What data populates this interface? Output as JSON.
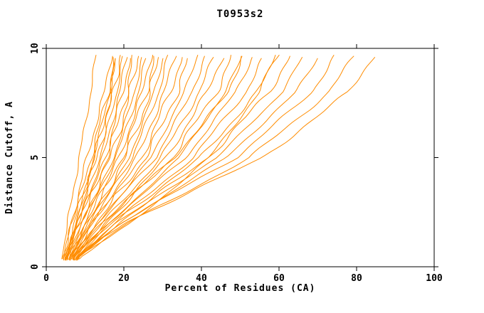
{
  "title": "T0953s2",
  "axes": {
    "x_label": "Percent of Residues (CA)",
    "y_label": "Distance Cutoff, A"
  },
  "colors": {
    "curve": "#FF8C00",
    "axis": "#000000",
    "background": "#FFFFFF"
  },
  "chart_data": {
    "type": "line",
    "title": "T0953s2",
    "xlabel": "Percent of Residues (CA)",
    "ylabel": "Distance Cutoff, A",
    "xlim": [
      0,
      100
    ],
    "ylim": [
      0,
      10
    ],
    "xticks": [
      0,
      20,
      40,
      60,
      80,
      100
    ],
    "yticks": [
      0,
      5,
      10
    ],
    "grid": false,
    "legend": "none",
    "y_samples": [
      0.4,
      2,
      5,
      8,
      9.7
    ],
    "series_note": "each series lists Percent-of-Residues (CA) values at the distance cutoffs given in y_samples",
    "series": [
      [
        4.0,
        5.5,
        8.5,
        11.5,
        12.8
      ],
      [
        4.5,
        6.5,
        10.5,
        15.0,
        16.8
      ],
      [
        5.0,
        7.0,
        11.5,
        16.0,
        17.6
      ],
      [
        4.2,
        6.8,
        12.5,
        16.8,
        18.2
      ],
      [
        5.5,
        8.0,
        13.0,
        17.5,
        18.9
      ],
      [
        4.8,
        7.5,
        13.8,
        18.2,
        19.8
      ],
      [
        5.0,
        8.2,
        14.6,
        19.0,
        20.7
      ],
      [
        6.0,
        9.0,
        15.2,
        19.8,
        21.6
      ],
      [
        4.5,
        8.0,
        15.8,
        20.8,
        22.6
      ],
      [
        5.2,
        9.0,
        16.6,
        21.8,
        23.7
      ],
      [
        6.0,
        9.8,
        17.4,
        22.8,
        24.8
      ],
      [
        5.0,
        9.2,
        18.0,
        23.8,
        25.9
      ],
      [
        6.5,
        10.8,
        18.8,
        24.8,
        27.0
      ],
      [
        5.5,
        10.0,
        19.6,
        25.8,
        28.1
      ],
      [
        6.0,
        10.8,
        20.5,
        26.8,
        29.2
      ],
      [
        6.8,
        11.8,
        21.4,
        27.8,
        30.3
      ],
      [
        5.8,
        11.0,
        22.2,
        29.0,
        31.5
      ],
      [
        6.2,
        11.8,
        23.4,
        30.5,
        33.2
      ],
      [
        7.0,
        12.8,
        24.6,
        32.0,
        35.0
      ],
      [
        6.0,
        12.0,
        25.8,
        33.8,
        37.0
      ],
      [
        7.2,
        13.5,
        27.0,
        35.6,
        39.0
      ],
      [
        6.5,
        13.0,
        28.2,
        37.5,
        41.2
      ],
      [
        7.0,
        14.5,
        29.6,
        39.5,
        43.4
      ],
      [
        7.5,
        15.5,
        31.0,
        41.5,
        45.6
      ],
      [
        6.8,
        15.0,
        32.5,
        43.8,
        48.0
      ],
      [
        7.8,
        16.5,
        34.2,
        46.2,
        50.6
      ],
      [
        7.0,
        16.0,
        36.0,
        48.8,
        53.4
      ],
      [
        8.0,
        17.5,
        37.8,
        51.5,
        56.4
      ],
      [
        7.4,
        17.0,
        39.8,
        54.5,
        59.5
      ],
      [
        8.0,
        18.5,
        41.8,
        57.5,
        62.8
      ],
      [
        7.6,
        18.0,
        44.0,
        60.8,
        66.4
      ],
      [
        8.2,
        19.5,
        46.4,
        64.4,
        70.3
      ],
      [
        7.8,
        19.0,
        49.0,
        68.5,
        74.6
      ],
      [
        8.5,
        21.0,
        52.5,
        73.0,
        79.5
      ],
      [
        8.0,
        20.0,
        56.0,
        78.0,
        84.5
      ],
      [
        5.3,
        7.8,
        12.2,
        16.4,
        18.0
      ],
      [
        7.5,
        22.0,
        42.0,
        55.0,
        59.0
      ],
      [
        6.8,
        14.0,
        33.0,
        47.0,
        50.5
      ]
    ]
  }
}
